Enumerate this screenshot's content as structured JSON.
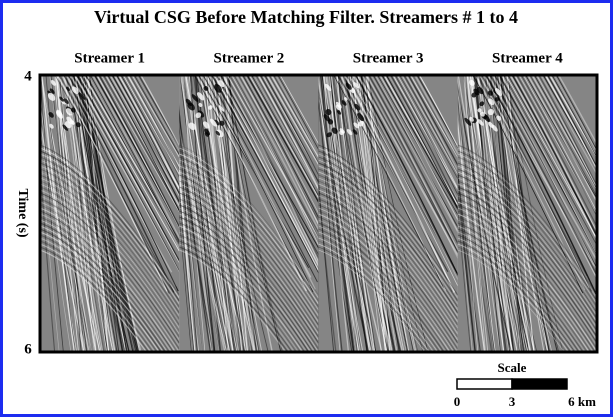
{
  "title": "Virtual CSG Before Matching Filter. Streamers # 1 to 4",
  "panels": [
    {
      "label": "Streamer 1"
    },
    {
      "label": "Streamer 2"
    },
    {
      "label": "Streamer 3"
    },
    {
      "label": "Streamer 4"
    }
  ],
  "y_axis": {
    "label": "Time (s)",
    "ticks": [
      4,
      6
    ]
  },
  "scale": {
    "title": "Scale",
    "labels": [
      0,
      3,
      "6 km"
    ]
  }
}
